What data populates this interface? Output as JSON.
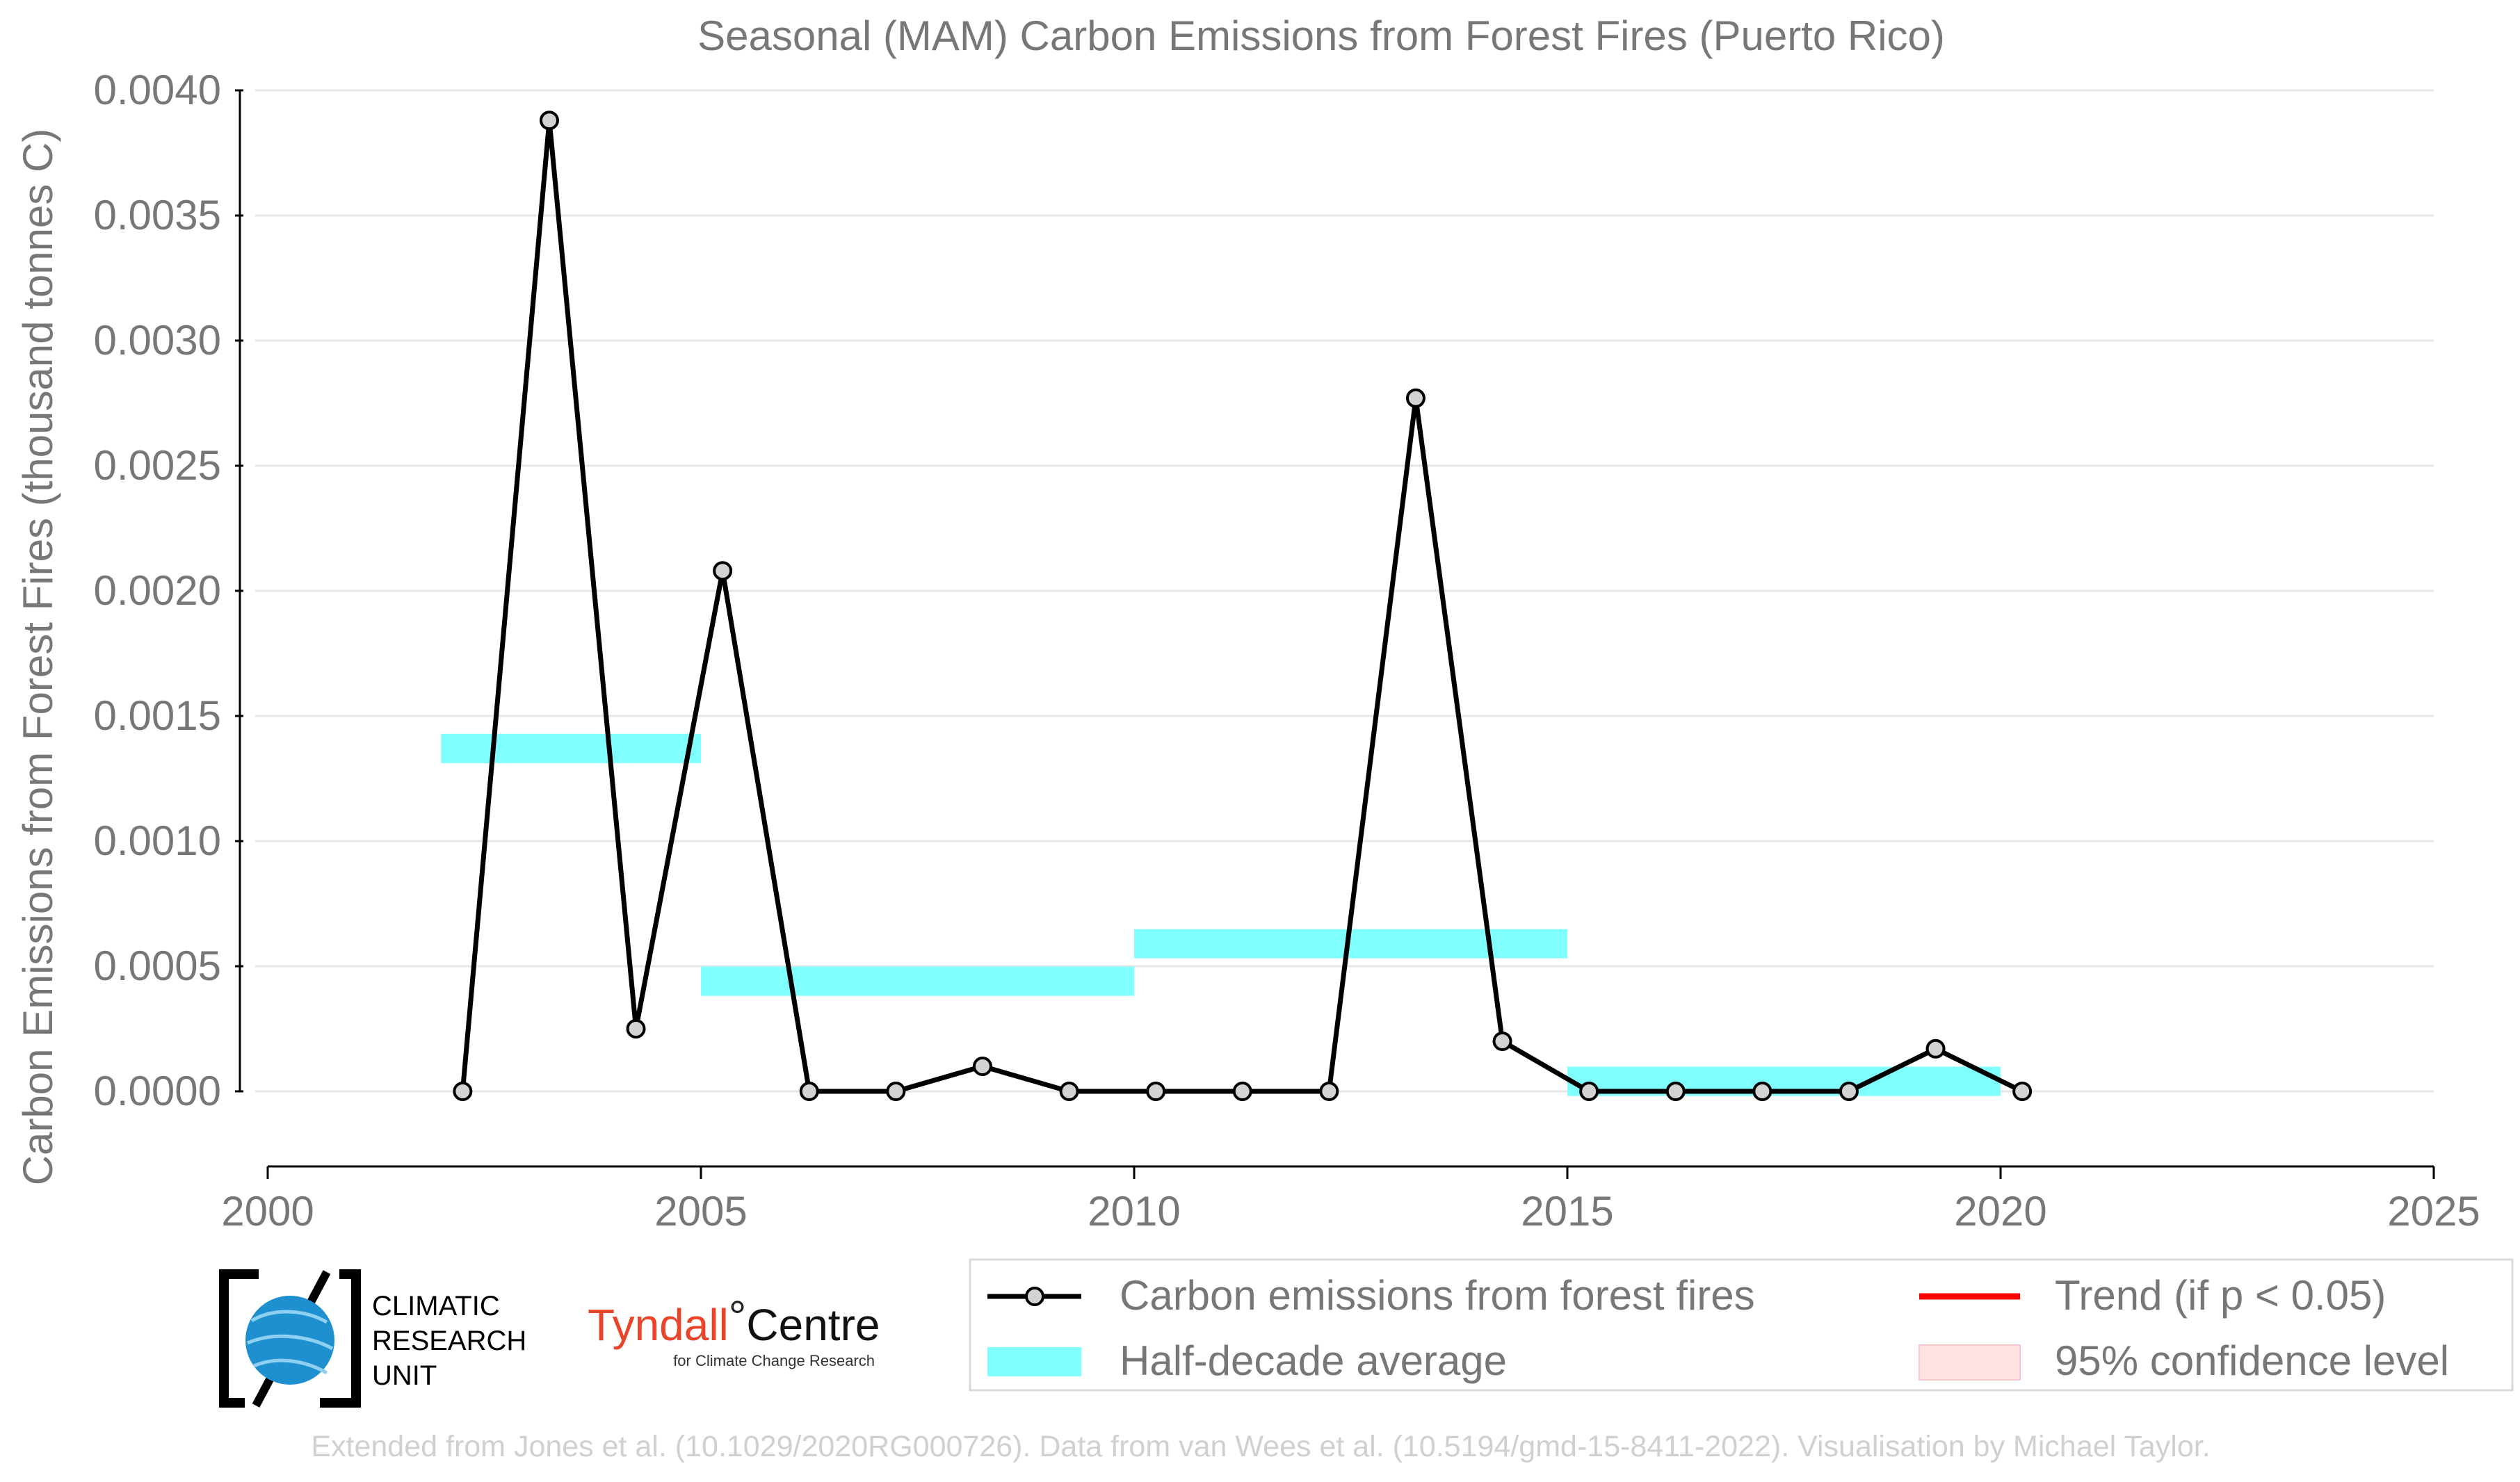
{
  "chart_data": {
    "type": "line",
    "title": "Seasonal (MAM) Carbon Emissions from Forest Fires (Puerto Rico)",
    "xlabel": "",
    "ylabel": "Carbon Emissions from Forest Fires (thousand tonnes C)",
    "xlim": [
      2000,
      2025
    ],
    "ylim": [
      -0.0003,
      0.004
    ],
    "x_ticks": [
      "2000",
      "2005",
      "2010",
      "2015",
      "2020",
      "2025"
    ],
    "y_ticks": [
      "0.0000",
      "0.0005",
      "0.0010",
      "0.0015",
      "0.0020",
      "0.0025",
      "0.0030",
      "0.0035",
      "0.0040"
    ],
    "grid": "horizontal",
    "series": [
      {
        "name": "Carbon emissions from forest fires",
        "x": [
          2002.25,
          2003.25,
          2004.25,
          2005.25,
          2006.25,
          2007.25,
          2008.25,
          2009.25,
          2010.25,
          2011.25,
          2012.25,
          2013.25,
          2014.25,
          2015.25,
          2016.25,
          2017.25,
          2018.25,
          2019.25,
          2020.25
        ],
        "values": [
          0.0,
          0.00388,
          0.00025,
          0.00208,
          0.0,
          0.0,
          0.0001,
          0.0,
          0.0,
          0.0,
          0.0,
          0.00277,
          0.0002,
          0.0,
          0.0,
          0.0,
          0.0,
          0.00017,
          0.0
        ],
        "color": "#000000"
      }
    ],
    "half_decade_average": [
      {
        "x0": 2002,
        "x1": 2005,
        "value": 0.00137
      },
      {
        "x0": 2005,
        "x1": 2010,
        "value": 0.00044
      },
      {
        "x0": 2010,
        "x1": 2015,
        "value": 0.00059
      },
      {
        "x0": 2015,
        "x1": 2020,
        "value": 4e-05
      }
    ],
    "legend": {
      "placement": "bottom-right",
      "items": [
        {
          "label": "Carbon emissions from forest fires",
          "kind": "line-marker",
          "color": "#000000"
        },
        {
          "label": "Trend (if p < 0.05)",
          "kind": "line",
          "color": "#ff0000"
        },
        {
          "label": "Half-decade average",
          "kind": "band",
          "color": "#80ffff"
        },
        {
          "label": "95% confidence level",
          "kind": "patch",
          "color": "#ffe0e3"
        }
      ]
    },
    "colors": {
      "band": "#80ffff",
      "line": "#000000",
      "marker_fill": "#d3d3d3",
      "grid": "#e6e6e6",
      "text": "#777777"
    }
  },
  "logos": {
    "cru_lines": [
      "CLIMATIC",
      "RESEARCH",
      "UNIT"
    ],
    "tyndall_main": "Tyndall",
    "tyndall_degree": "°",
    "tyndall_centre": "Centre",
    "tyndall_sub": "for Climate Change Research"
  },
  "footer": "Extended from Jones et al. (10.1029/2020RG000726). Data from van Wees et al. (10.5194/gmd-15-8411-2022). Visualisation by Michael Taylor."
}
